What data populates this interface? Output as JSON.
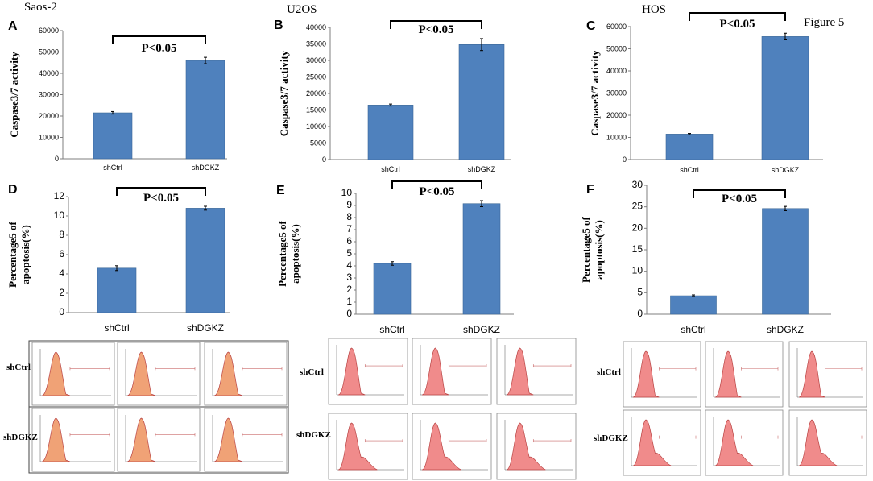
{
  "figure_label": "Figure 5",
  "chart_data": [
    {
      "type": "bar",
      "panel": "A",
      "cell_line": "Saos-2",
      "ylabel": "Caspase3/7 activity",
      "categories": [
        "shCtrl",
        "shDGKZ"
      ],
      "values": [
        21500,
        46000
      ],
      "errors": [
        600,
        1500
      ],
      "ylim": [
        0,
        60000
      ],
      "ytick_step": 10000,
      "annotation": "P<0.05"
    },
    {
      "type": "bar",
      "panel": "B",
      "cell_line": "U2OS",
      "ylabel": "Caspase3/7 activity",
      "categories": [
        "shCtrl",
        "shDGKZ"
      ],
      "values": [
        16500,
        34800
      ],
      "errors": [
        300,
        1800
      ],
      "ylim": [
        0,
        40000
      ],
      "ytick_step": 5000,
      "annotation": "P<0.05"
    },
    {
      "type": "bar",
      "panel": "C",
      "cell_line": "HOS",
      "ylabel": "Caspase3/7 activity",
      "categories": [
        "shCtrl",
        "shDGKZ"
      ],
      "values": [
        11500,
        55500
      ],
      "errors": [
        300,
        1500
      ],
      "ylim": [
        0,
        60000
      ],
      "ytick_step": 10000,
      "annotation": "P<0.05"
    },
    {
      "type": "bar",
      "panel": "D",
      "ylabel": "Percentage5 of apoptosis(%)",
      "categories": [
        "shCtrl",
        "shDGKZ"
      ],
      "values": [
        4.6,
        10.8
      ],
      "errors": [
        0.25,
        0.2
      ],
      "ylim": [
        0,
        12
      ],
      "ytick_step": 2,
      "annotation": "P<0.05"
    },
    {
      "type": "bar",
      "panel": "E",
      "ylabel": "Percentage5 of apoptosis(%)",
      "categories": [
        "shCtrl",
        "shDGKZ"
      ],
      "values": [
        4.2,
        9.15
      ],
      "errors": [
        0.15,
        0.25
      ],
      "ylim": [
        0,
        10
      ],
      "ytick_step": 1,
      "annotation": "P<0.05"
    },
    {
      "type": "bar",
      "panel": "F",
      "ylabel": "Percentage5 of apoptosis(%)",
      "categories": [
        "shCtrl",
        "shDGKZ"
      ],
      "values": [
        4.3,
        24.6
      ],
      "errors": [
        0.2,
        0.5
      ],
      "ylim": [
        0,
        30
      ],
      "ytick_step": 5,
      "annotation": "P<0.05"
    }
  ],
  "flow_panels": [
    {
      "rows": [
        "shCtrl",
        "shDGKZ"
      ],
      "columns": 3
    },
    {
      "rows": [
        "shCtrl",
        "shDGKZ"
      ],
      "columns": 3
    },
    {
      "rows": [
        "shCtrl",
        "shDGKZ"
      ],
      "columns": 3
    }
  ],
  "colors": {
    "bar": "#4f81bd",
    "bar_edge": "#3a6796",
    "flow_fill_1": "#f0a276",
    "flow_fill_2": "#f08b8b",
    "flow_edge": "#b94444"
  }
}
